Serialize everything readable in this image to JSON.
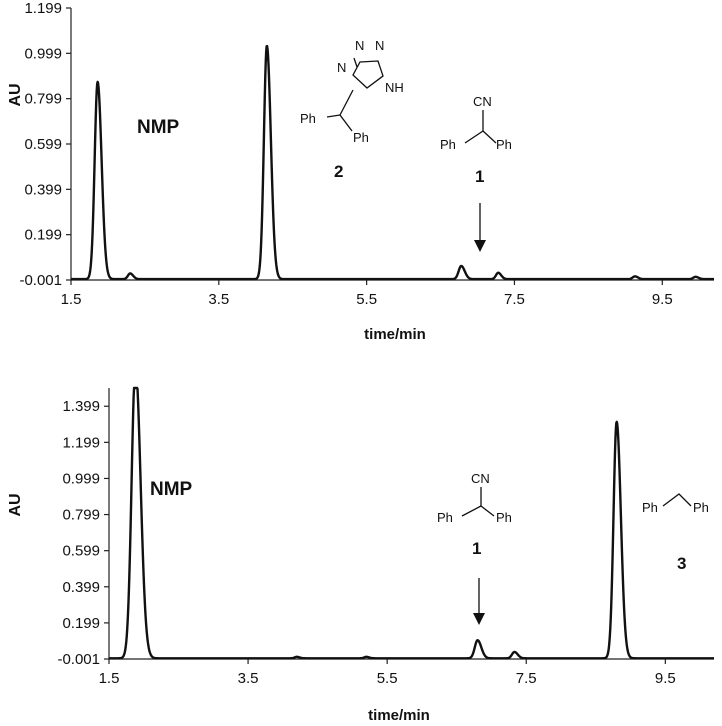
{
  "chart_data": [
    {
      "type": "line",
      "panel": "top",
      "xlabel": "time/min",
      "ylabel": "AU",
      "xlim": [
        1.5,
        10.2
      ],
      "ylim": [
        -0.001,
        1.199
      ],
      "x_ticks": [
        "1.5",
        "3.5",
        "5.5",
        "7.5",
        "9.5"
      ],
      "y_ticks": [
        "-0.001",
        "0.199",
        "0.399",
        "0.599",
        "0.799",
        "0.999",
        "1.199"
      ],
      "series": [
        {
          "peaks": [
            {
              "time": 1.86,
              "height": 0.87,
              "width": 0.04
            },
            {
              "time": 2.3,
              "height": 0.025,
              "width": 0.03
            },
            {
              "time": 4.15,
              "height": 1.03,
              "width": 0.04
            },
            {
              "time": 6.78,
              "height": 0.058,
              "width": 0.035
            },
            {
              "time": 7.28,
              "height": 0.028,
              "width": 0.03
            },
            {
              "time": 9.13,
              "height": 0.012,
              "width": 0.03
            },
            {
              "time": 9.95,
              "height": 0.01,
              "width": 0.03
            }
          ]
        }
      ],
      "annotations": {
        "nmp": "NMP",
        "compound_2": "2",
        "compound_1": "1",
        "ph_a": "Ph",
        "ph_b": "Ph",
        "ph_c": "Ph",
        "ph_d": "Ph",
        "cn": "CN",
        "tz_n1": "N",
        "tz_n2": "N",
        "tz_n3": "N",
        "tz_nh": "NH"
      }
    },
    {
      "type": "line",
      "panel": "bottom",
      "xlabel": "time/min",
      "ylabel": "AU",
      "xlim": [
        1.5,
        10.2
      ],
      "ylim": [
        -0.001,
        1.5
      ],
      "x_ticks": [
        "1.5",
        "3.5",
        "5.5",
        "7.5",
        "9.5"
      ],
      "y_ticks": [
        "-0.001",
        "0.199",
        "0.399",
        "0.599",
        "0.799",
        "0.999",
        "1.199",
        "1.399"
      ],
      "series": [
        {
          "peaks": [
            {
              "time": 1.88,
              "height": 1.62,
              "width": 0.055
            },
            {
              "time": 6.8,
              "height": 0.1,
              "width": 0.04
            },
            {
              "time": 7.33,
              "height": 0.035,
              "width": 0.035
            },
            {
              "time": 4.2,
              "height": 0.008,
              "width": 0.03
            },
            {
              "time": 5.2,
              "height": 0.008,
              "width": 0.03
            },
            {
              "time": 8.8,
              "height": 1.31,
              "width": 0.045
            }
          ]
        }
      ],
      "annotations": {
        "nmp": "NMP",
        "compound_1": "1",
        "compound_3": "3",
        "ph_a": "Ph",
        "ph_b": "Ph",
        "ph_c": "Ph",
        "ph_d": "Ph",
        "cn": "CN"
      }
    }
  ]
}
